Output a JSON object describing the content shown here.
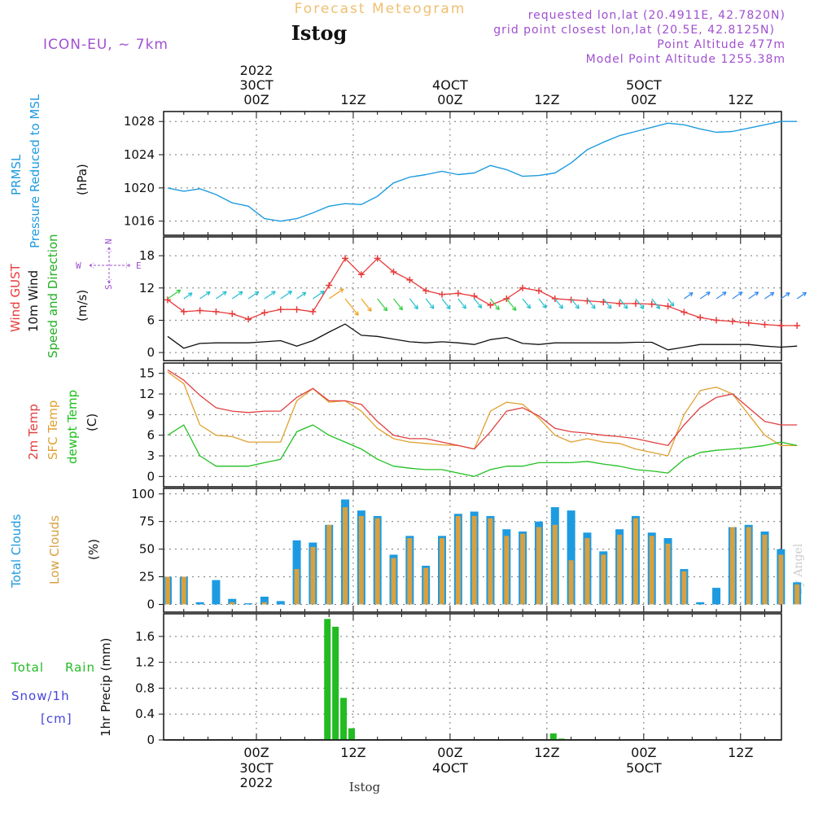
{
  "header": {
    "product": "Forecast Meteogram",
    "location": "Istog",
    "model": "ICON-EU, ~ 7km",
    "requested": "requested lon,lat (20.4911E, 42.7820N)",
    "gridpoint": "grid point closest lon,lat (20.5E, 42.8125N)",
    "altitude": "Point Altitude 477m",
    "model_altitude": "Model Point Altitude 1255.38m",
    "watermark": "by Angel",
    "footer_label": "Istog"
  },
  "colors": {
    "pressure": "#1e9be0",
    "gust": "#e83a3a",
    "wind": "#111111",
    "wind_text": "#22b022",
    "t2m": "#e04040",
    "sfc": "#e0a030",
    "dew": "#20c020",
    "total_cloud": "#1e9be0",
    "low_cloud": "#d8a040",
    "rain": "#22bb22",
    "snow": "#4444dd",
    "header_purple": "#a050d0",
    "title_orange": "#f0c070"
  },
  "time_axis": {
    "top": [
      {
        "hours": 0,
        "label": "00Z",
        "day": "30CT",
        "year": "2022"
      },
      {
        "hours": 12,
        "label": "12Z",
        "day": "",
        "year": ""
      },
      {
        "hours": 24,
        "label": "00Z",
        "day": "4OCT",
        "year": ""
      },
      {
        "hours": 36,
        "label": "12Z",
        "day": "",
        "year": ""
      },
      {
        "hours": 48,
        "label": "00Z",
        "day": "5OCT",
        "year": ""
      },
      {
        "hours": 60,
        "label": "12Z",
        "day": "",
        "year": ""
      }
    ],
    "bottom": [
      {
        "hours": 0,
        "label": "00Z",
        "day": "30CT",
        "year": "2022"
      },
      {
        "hours": 12,
        "label": "12Z",
        "day": "",
        "year": ""
      },
      {
        "hours": 24,
        "label": "00Z",
        "day": "4OCT",
        "year": ""
      },
      {
        "hours": 36,
        "label": "12Z",
        "day": "",
        "year": ""
      },
      {
        "hours": 48,
        "label": "00Z",
        "day": "5OCT",
        "year": ""
      },
      {
        "hours": 60,
        "label": "12Z",
        "day": "",
        "year": ""
      }
    ]
  },
  "panels": {
    "pressure": {
      "label1": "PRMSL",
      "label2": "Pressure Reduced to MSL",
      "unit": "(hPa)"
    },
    "wind": {
      "label_gust": "Wind GUST",
      "label_wind": "10m Wind",
      "label_speed": "Speed and Direction",
      "unit": "(m/s)",
      "compass_n": "N",
      "compass_s": "S",
      "compass_w": "W",
      "compass_e": "E"
    },
    "temp": {
      "label_t2m": "2m Temp",
      "label_sfc": "SFC Temp",
      "label_dew": "dewpt Temp",
      "unit": "(C)"
    },
    "cloud": {
      "label_total": "Total Clouds",
      "label_low": "Low Clouds",
      "unit": "(%)"
    },
    "precip": {
      "label_rain": "Total",
      "label_rain2": "Rain",
      "label_snow": "Snow/1h",
      "label_snow_unit": "[cm]",
      "unit": "1hr Precip (mm)"
    }
  },
  "chart_data": [
    {
      "type": "line",
      "title": "PRMSL Pressure Reduced to MSL",
      "ylabel": "hPa",
      "ylim": [
        1014.3,
        1029.2
      ],
      "yticks": [
        "1016",
        "1020",
        "1024",
        "1028"
      ],
      "x_hours": [
        -11,
        -9,
        -7,
        -5,
        -3,
        -1,
        1,
        3,
        5,
        7,
        9,
        11,
        13,
        15,
        17,
        19,
        21,
        23,
        25,
        27,
        29,
        31,
        33,
        35,
        37,
        39,
        41,
        43,
        45,
        47,
        49,
        51,
        53,
        55,
        57,
        59,
        61,
        63,
        65,
        67
      ],
      "series": [
        {
          "name": "PRMSL",
          "values": [
            1020.0,
            1019.6,
            1019.9,
            1019.2,
            1018.2,
            1017.8,
            1016.3,
            1016.0,
            1016.3,
            1017.0,
            1017.8,
            1018.1,
            1018.0,
            1019.0,
            1020.6,
            1021.3,
            1021.6,
            1022.0,
            1021.6,
            1021.8,
            1022.7,
            1022.2,
            1021.4,
            1021.5,
            1021.8,
            1023.0,
            1024.6,
            1025.5,
            1026.3,
            1026.8,
            1027.3,
            1027.8,
            1027.6,
            1027.1,
            1026.7,
            1026.8,
            1027.2,
            1027.6,
            1028.0,
            1028.0
          ]
        }
      ]
    },
    {
      "type": "line",
      "title": "Wind GUST / 10m Wind Speed and Direction",
      "ylabel": "m/s",
      "ylim": [
        -1.5,
        21.5
      ],
      "yticks": [
        "0",
        "6",
        "12",
        "18"
      ],
      "x_hours": [
        -11,
        -9,
        -7,
        -5,
        -3,
        -1,
        1,
        3,
        5,
        7,
        9,
        11,
        13,
        15,
        17,
        19,
        21,
        23,
        25,
        27,
        29,
        31,
        33,
        35,
        37,
        39,
        41,
        43,
        45,
        47,
        49,
        51,
        53,
        55,
        57,
        59,
        61,
        63,
        65,
        67
      ],
      "series": [
        {
          "name": "Wind GUST",
          "values": [
            9.8,
            7.6,
            7.8,
            7.6,
            7.2,
            6.2,
            7.4,
            8.0,
            8.0,
            7.6,
            12.5,
            17.5,
            14.5,
            17.5,
            15.0,
            13.5,
            11.5,
            10.8,
            11.0,
            10.5,
            8.8,
            10.0,
            12.0,
            11.5,
            10.0,
            9.8,
            9.6,
            9.4,
            9.1,
            9.1,
            9.0,
            8.6,
            7.5,
            6.5,
            6.0,
            5.8,
            5.5,
            5.2,
            5.0,
            5.0
          ]
        },
        {
          "name": "10m Wind",
          "values": [
            3.0,
            0.8,
            1.7,
            1.8,
            1.8,
            1.8,
            2.0,
            2.2,
            1.2,
            2.2,
            3.8,
            5.3,
            3.2,
            3.0,
            2.5,
            2.0,
            1.8,
            2.0,
            1.8,
            1.5,
            2.4,
            2.8,
            1.7,
            1.5,
            1.8,
            1.8,
            1.8,
            1.8,
            1.8,
            1.9,
            1.9,
            0.5,
            1.0,
            1.5,
            1.5,
            1.5,
            1.5,
            1.2,
            1.0,
            1.2
          ]
        }
      ]
    },
    {
      "type": "line",
      "title": "2m Temp / SFC Temp / dewpt Temp",
      "ylabel": "C",
      "ylim": [
        -1.5,
        16.5
      ],
      "yticks": [
        "0",
        "3",
        "6",
        "9",
        "12",
        "15"
      ],
      "x_hours": [
        -11,
        -9,
        -7,
        -5,
        -3,
        -1,
        1,
        3,
        5,
        7,
        9,
        11,
        13,
        15,
        17,
        19,
        21,
        23,
        25,
        27,
        29,
        31,
        33,
        35,
        37,
        39,
        41,
        43,
        45,
        47,
        49,
        51,
        53,
        55,
        57,
        59,
        61,
        63,
        65,
        67
      ],
      "series": [
        {
          "name": "2m Temp",
          "values": [
            15.5,
            14.0,
            11.8,
            10.0,
            9.5,
            9.3,
            9.5,
            9.5,
            11.5,
            12.8,
            11.0,
            11.0,
            10.5,
            8.0,
            6.0,
            5.5,
            5.5,
            5.0,
            4.5,
            4.0,
            6.5,
            9.5,
            10.0,
            8.8,
            7.0,
            6.5,
            6.3,
            6.0,
            5.8,
            5.5,
            5.0,
            4.5,
            7.5,
            10.0,
            11.5,
            12.0,
            10.0,
            8.0,
            7.5,
            7.5
          ]
        },
        {
          "name": "SFC Temp",
          "values": [
            15.2,
            13.5,
            7.5,
            6.0,
            5.8,
            5.0,
            5.0,
            5.0,
            11.0,
            12.8,
            10.8,
            11.0,
            9.5,
            7.0,
            5.5,
            5.0,
            4.8,
            4.6,
            4.5,
            4.0,
            9.5,
            10.8,
            10.5,
            8.5,
            6.0,
            5.0,
            5.5,
            5.0,
            4.8,
            4.0,
            3.5,
            3.0,
            9.0,
            12.5,
            13.0,
            12.0,
            9.0,
            6.0,
            4.5,
            4.5
          ]
        },
        {
          "name": "dewpt Temp",
          "values": [
            6.0,
            7.5,
            3.0,
            1.5,
            1.5,
            1.5,
            2.0,
            2.5,
            6.5,
            7.5,
            6.0,
            5.0,
            4.0,
            2.5,
            1.5,
            1.2,
            1.0,
            1.0,
            0.5,
            0.0,
            1.0,
            1.5,
            1.5,
            2.0,
            2.0,
            2.0,
            2.2,
            1.8,
            1.5,
            1.0,
            0.8,
            0.5,
            2.5,
            3.5,
            3.8,
            4.0,
            4.2,
            4.5,
            5.0,
            4.5
          ]
        }
      ]
    },
    {
      "type": "bar",
      "title": "Total Clouds / Low Clouds",
      "ylabel": "%",
      "ylim": [
        -7,
        105
      ],
      "yticks": [
        "0",
        "25",
        "50",
        "75",
        "100"
      ],
      "x_hours": [
        -11,
        -9,
        -7,
        -5,
        -3,
        -1,
        1,
        3,
        5,
        7,
        9,
        11,
        13,
        15,
        17,
        19,
        21,
        23,
        25,
        27,
        29,
        31,
        33,
        35,
        37,
        39,
        41,
        43,
        45,
        47,
        49,
        51,
        53,
        55,
        57,
        59,
        61,
        63,
        65,
        67
      ],
      "series": [
        {
          "name": "Total Clouds",
          "values": [
            25,
            25,
            2,
            22,
            5,
            1,
            7,
            3,
            58,
            56,
            72,
            95,
            85,
            80,
            45,
            62,
            35,
            62,
            82,
            84,
            80,
            68,
            66,
            75,
            88,
            85,
            65,
            48,
            68,
            80,
            65,
            60,
            32,
            2,
            15,
            70,
            72,
            66,
            50,
            20
          ]
        },
        {
          "name": "Low Clouds",
          "values": [
            25,
            25,
            0,
            0,
            2,
            0,
            2,
            0,
            32,
            52,
            72,
            88,
            80,
            78,
            42,
            60,
            33,
            60,
            80,
            80,
            78,
            62,
            64,
            70,
            72,
            40,
            60,
            45,
            63,
            78,
            62,
            55,
            30,
            0,
            0,
            70,
            70,
            63,
            45,
            18
          ]
        }
      ]
    },
    {
      "type": "bar",
      "title": "1hr Precip",
      "ylabel": "mm",
      "ylim": [
        0,
        1.95
      ],
      "yticks": [
        "0",
        "0.4",
        "0.8",
        "1.2",
        "1.6"
      ],
      "x_hours": [
        8.8,
        9.8,
        10.8,
        11.8,
        36.8,
        37.8
      ],
      "series": [
        {
          "name": "Total Rain",
          "values": [
            1.87,
            1.75,
            0.65,
            0.18,
            0.1,
            0.02
          ]
        }
      ]
    }
  ]
}
